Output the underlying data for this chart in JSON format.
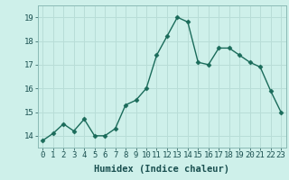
{
  "x": [
    0,
    1,
    2,
    3,
    4,
    5,
    6,
    7,
    8,
    9,
    10,
    11,
    12,
    13,
    14,
    15,
    16,
    17,
    18,
    19,
    20,
    21,
    22,
    23
  ],
  "y": [
    13.8,
    14.1,
    14.5,
    14.2,
    14.7,
    14.0,
    14.0,
    14.3,
    15.3,
    15.5,
    16.0,
    17.4,
    18.2,
    19.0,
    18.8,
    17.1,
    17.0,
    17.7,
    17.7,
    17.4,
    17.1,
    16.9,
    15.9,
    15.0
  ],
  "xlabel": "Humidex (Indice chaleur)",
  "ylim": [
    13.5,
    19.5
  ],
  "xlim": [
    -0.5,
    23.5
  ],
  "yticks": [
    14,
    15,
    16,
    17,
    18,
    19
  ],
  "xticks": [
    0,
    1,
    2,
    3,
    4,
    5,
    6,
    7,
    8,
    9,
    10,
    11,
    12,
    13,
    14,
    15,
    16,
    17,
    18,
    19,
    20,
    21,
    22,
    23
  ],
  "xtick_labels": [
    "0",
    "1",
    "2",
    "3",
    "4",
    "5",
    "6",
    "7",
    "8",
    "9",
    "10",
    "11",
    "12",
    "13",
    "14",
    "15",
    "16",
    "17",
    "18",
    "19",
    "20",
    "21",
    "22",
    "23"
  ],
  "line_color": "#1a6b5a",
  "marker_color": "#1a6b5a",
  "bg_color": "#cef0ea",
  "grid_color": "#b8ddd7",
  "xlabel_fontsize": 7.5,
  "tick_fontsize": 6.5,
  "marker_size": 2.5,
  "line_width": 1.0
}
